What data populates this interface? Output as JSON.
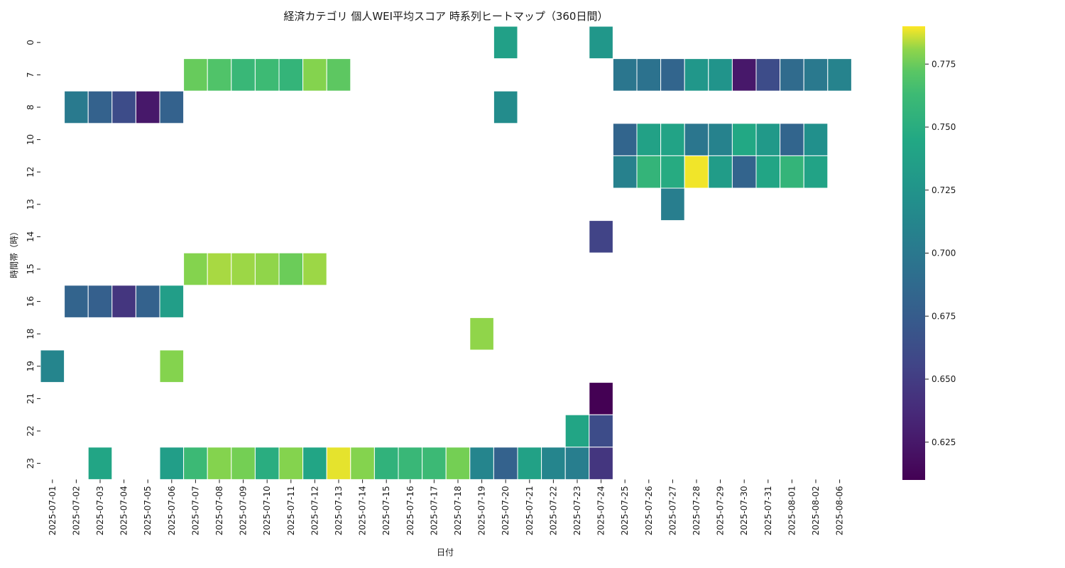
{
  "chart_data": {
    "type": "heatmap",
    "title": "経済カテゴリ 個人WEI平均スコア 時系列ヒートマップ（360日間）",
    "xlabel": "日付",
    "ylabel": "時間帯（時）",
    "colormap": "viridis",
    "colorbar": {
      "range": [
        0.61,
        0.79
      ],
      "ticks": [
        "0.625",
        "0.650",
        "0.675",
        "0.700",
        "0.725",
        "0.750",
        "0.775"
      ],
      "tick_values": [
        0.625,
        0.65,
        0.675,
        0.7,
        0.725,
        0.75,
        0.775
      ]
    },
    "x": [
      "2025-07-01",
      "2025-07-02",
      "2025-07-03",
      "2025-07-04",
      "2025-07-05",
      "2025-07-06",
      "2025-07-07",
      "2025-07-08",
      "2025-07-09",
      "2025-07-10",
      "2025-07-11",
      "2025-07-12",
      "2025-07-13",
      "2025-07-14",
      "2025-07-15",
      "2025-07-16",
      "2025-07-17",
      "2025-07-18",
      "2025-07-19",
      "2025-07-20",
      "2025-07-21",
      "2025-07-22",
      "2025-07-23",
      "2025-07-24",
      "2025-07-25",
      "2025-07-26",
      "2025-07-27",
      "2025-07-28",
      "2025-07-29",
      "2025-07-30",
      "2025-07-31",
      "2025-08-01",
      "2025-08-02",
      "2025-08-06"
    ],
    "y": [
      "0",
      "7",
      "8",
      "10",
      "12",
      "13",
      "14",
      "15",
      "16",
      "18",
      "19",
      "21",
      "22",
      "23"
    ],
    "cells": [
      {
        "x": "2025-07-20",
        "y": "0",
        "value": 0.737
      },
      {
        "x": "2025-07-24",
        "y": "0",
        "value": 0.728
      },
      {
        "x": "2025-07-07",
        "y": "7",
        "value": 0.775
      },
      {
        "x": "2025-07-08",
        "y": "7",
        "value": 0.77
      },
      {
        "x": "2025-07-09",
        "y": "7",
        "value": 0.76
      },
      {
        "x": "2025-07-10",
        "y": "7",
        "value": 0.763
      },
      {
        "x": "2025-07-11",
        "y": "7",
        "value": 0.757
      },
      {
        "x": "2025-07-12",
        "y": "7",
        "value": 0.78
      },
      {
        "x": "2025-07-13",
        "y": "7",
        "value": 0.773
      },
      {
        "x": "2025-07-25",
        "y": "7",
        "value": 0.698
      },
      {
        "x": "2025-07-26",
        "y": "7",
        "value": 0.695
      },
      {
        "x": "2025-07-27",
        "y": "7",
        "value": 0.683
      },
      {
        "x": "2025-07-28",
        "y": "7",
        "value": 0.728
      },
      {
        "x": "2025-07-29",
        "y": "7",
        "value": 0.725
      },
      {
        "x": "2025-07-30",
        "y": "7",
        "value": 0.625
      },
      {
        "x": "2025-07-31",
        "y": "7",
        "value": 0.662
      },
      {
        "x": "2025-08-01",
        "y": "7",
        "value": 0.688
      },
      {
        "x": "2025-08-02",
        "y": "7",
        "value": 0.701
      },
      {
        "x": "2025-08-06",
        "y": "7",
        "value": 0.71
      },
      {
        "x": "2025-07-02",
        "y": "8",
        "value": 0.702
      },
      {
        "x": "2025-07-03",
        "y": "8",
        "value": 0.68
      },
      {
        "x": "2025-07-04",
        "y": "8",
        "value": 0.662
      },
      {
        "x": "2025-07-05",
        "y": "8",
        "value": 0.625
      },
      {
        "x": "2025-07-06",
        "y": "8",
        "value": 0.68
      },
      {
        "x": "2025-07-20",
        "y": "8",
        "value": 0.718
      },
      {
        "x": "2025-07-25",
        "y": "10",
        "value": 0.683
      },
      {
        "x": "2025-07-26",
        "y": "10",
        "value": 0.738
      },
      {
        "x": "2025-07-27",
        "y": "10",
        "value": 0.74
      },
      {
        "x": "2025-07-28",
        "y": "10",
        "value": 0.698
      },
      {
        "x": "2025-07-29",
        "y": "10",
        "value": 0.709
      },
      {
        "x": "2025-07-30",
        "y": "10",
        "value": 0.745
      },
      {
        "x": "2025-07-31",
        "y": "10",
        "value": 0.73
      },
      {
        "x": "2025-08-01",
        "y": "10",
        "value": 0.683
      },
      {
        "x": "2025-08-02",
        "y": "10",
        "value": 0.722
      },
      {
        "x": "2025-07-25",
        "y": "12",
        "value": 0.708
      },
      {
        "x": "2025-07-26",
        "y": "12",
        "value": 0.757
      },
      {
        "x": "2025-07-27",
        "y": "12",
        "value": 0.748
      },
      {
        "x": "2025-07-28",
        "y": "12",
        "value": 0.789
      },
      {
        "x": "2025-07-29",
        "y": "12",
        "value": 0.733
      },
      {
        "x": "2025-07-30",
        "y": "12",
        "value": 0.682
      },
      {
        "x": "2025-07-31",
        "y": "12",
        "value": 0.742
      },
      {
        "x": "2025-08-01",
        "y": "12",
        "value": 0.757
      },
      {
        "x": "2025-08-02",
        "y": "12",
        "value": 0.74
      },
      {
        "x": "2025-07-27",
        "y": "13",
        "value": 0.705
      },
      {
        "x": "2025-07-24",
        "y": "14",
        "value": 0.655
      },
      {
        "x": "2025-07-07",
        "y": "15",
        "value": 0.78
      },
      {
        "x": "2025-07-08",
        "y": "15",
        "value": 0.783
      },
      {
        "x": "2025-07-09",
        "y": "15",
        "value": 0.782
      },
      {
        "x": "2025-07-10",
        "y": "15",
        "value": 0.781
      },
      {
        "x": "2025-07-11",
        "y": "15",
        "value": 0.776
      },
      {
        "x": "2025-07-12",
        "y": "15",
        "value": 0.782
      },
      {
        "x": "2025-07-02",
        "y": "16",
        "value": 0.682
      },
      {
        "x": "2025-07-03",
        "y": "16",
        "value": 0.678
      },
      {
        "x": "2025-07-04",
        "y": "16",
        "value": 0.645
      },
      {
        "x": "2025-07-05",
        "y": "16",
        "value": 0.68
      },
      {
        "x": "2025-07-06",
        "y": "16",
        "value": 0.735
      },
      {
        "x": "2025-07-19",
        "y": "18",
        "value": 0.781
      },
      {
        "x": "2025-07-01",
        "y": "19",
        "value": 0.712
      },
      {
        "x": "2025-07-06",
        "y": "19",
        "value": 0.78
      },
      {
        "x": "2025-07-24",
        "y": "21",
        "value": 0.61
      },
      {
        "x": "2025-07-23",
        "y": "22",
        "value": 0.742
      },
      {
        "x": "2025-07-24",
        "y": "22",
        "value": 0.662
      },
      {
        "x": "2025-07-03",
        "y": "23",
        "value": 0.742
      },
      {
        "x": "2025-07-06",
        "y": "23",
        "value": 0.735
      },
      {
        "x": "2025-07-07",
        "y": "23",
        "value": 0.762
      },
      {
        "x": "2025-07-08",
        "y": "23",
        "value": 0.78
      },
      {
        "x": "2025-07-09",
        "y": "23",
        "value": 0.778
      },
      {
        "x": "2025-07-10",
        "y": "23",
        "value": 0.75
      },
      {
        "x": "2025-07-11",
        "y": "23",
        "value": 0.78
      },
      {
        "x": "2025-07-12",
        "y": "23",
        "value": 0.742
      },
      {
        "x": "2025-07-13",
        "y": "23",
        "value": 0.788
      },
      {
        "x": "2025-07-14",
        "y": "23",
        "value": 0.78
      },
      {
        "x": "2025-07-15",
        "y": "23",
        "value": 0.755
      },
      {
        "x": "2025-07-16",
        "y": "23",
        "value": 0.76
      },
      {
        "x": "2025-07-17",
        "y": "23",
        "value": 0.762
      },
      {
        "x": "2025-07-18",
        "y": "23",
        "value": 0.778
      },
      {
        "x": "2025-07-19",
        "y": "23",
        "value": 0.712
      },
      {
        "x": "2025-07-20",
        "y": "23",
        "value": 0.68
      },
      {
        "x": "2025-07-21",
        "y": "23",
        "value": 0.738
      },
      {
        "x": "2025-07-22",
        "y": "23",
        "value": 0.712
      },
      {
        "x": "2025-07-23",
        "y": "23",
        "value": 0.705
      },
      {
        "x": "2025-07-24",
        "y": "23",
        "value": 0.645
      }
    ]
  }
}
